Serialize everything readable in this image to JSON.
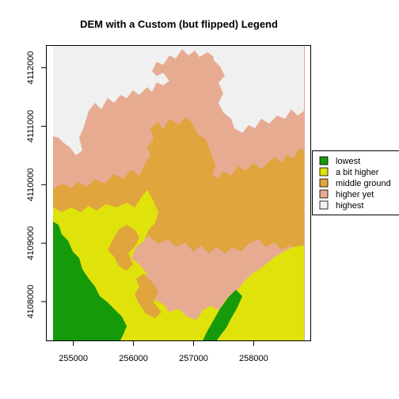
{
  "title": "DEM with a Custom (but flipped) Legend",
  "x_axis": {
    "ticks": [
      {
        "value": 255000,
        "label": "255000"
      },
      {
        "value": 256000,
        "label": "256000"
      },
      {
        "value": 257000,
        "label": "257000"
      },
      {
        "value": 258000,
        "label": "258000"
      }
    ],
    "range": [
      254550,
      258950
    ]
  },
  "y_axis": {
    "ticks": [
      {
        "value": 4108000,
        "label": "4108000"
      },
      {
        "value": 4109000,
        "label": "4109000"
      },
      {
        "value": 4110000,
        "label": "4110000"
      },
      {
        "value": 4111000,
        "label": "4111000"
      },
      {
        "value": 4112000,
        "label": "4112000"
      }
    ],
    "range": [
      4107330,
      4112380
    ]
  },
  "legend": {
    "placement": "right",
    "items": [
      {
        "label": "lowest",
        "color": "#159A09"
      },
      {
        "label": "a bit higher",
        "color": "#DFE20B"
      },
      {
        "label": "middle ground",
        "color": "#E0A53C"
      },
      {
        "label": "higher yet",
        "color": "#E7AB92"
      },
      {
        "label": "highest",
        "color": "#F0F0F0"
      }
    ]
  },
  "raster_colors": {
    "lowest": "#159A09",
    "a_bit_higher": "#DFE20B",
    "middle_ground": "#E0A53C",
    "higher_yet": "#E7AB92",
    "highest": "#F0F0F0"
  }
}
